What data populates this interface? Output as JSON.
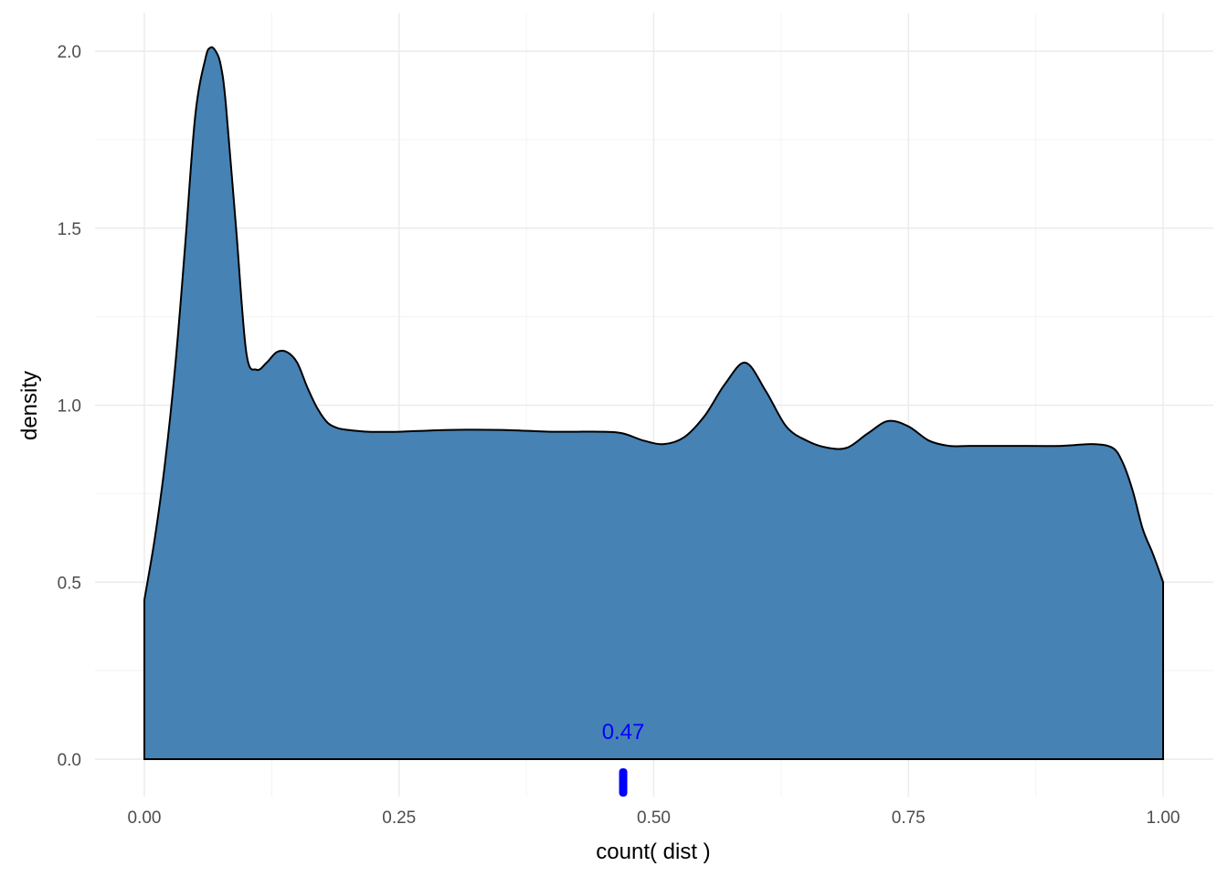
{
  "chart_data": {
    "type": "area",
    "subtype": "density",
    "xlabel": "count( dist )",
    "ylabel": "density",
    "xlim": [
      0,
      1
    ],
    "ylim": [
      0,
      2
    ],
    "x_ticks": [
      "0.00",
      "0.25",
      "0.50",
      "0.75",
      "1.00"
    ],
    "y_ticks": [
      "0.0",
      "0.5",
      "1.0",
      "1.5",
      "2.0"
    ],
    "grid": true,
    "fill_color": "#4682B4",
    "line_color": "#000000",
    "series": [
      {
        "x": [
          0.0,
          0.01,
          0.02,
          0.03,
          0.04,
          0.05,
          0.06,
          0.065,
          0.07,
          0.075,
          0.08,
          0.09,
          0.1,
          0.11,
          0.12,
          0.13,
          0.14,
          0.15,
          0.16,
          0.17,
          0.18,
          0.19,
          0.2,
          0.22,
          0.25,
          0.3,
          0.35,
          0.4,
          0.45,
          0.47,
          0.49,
          0.51,
          0.53,
          0.55,
          0.57,
          0.59,
          0.61,
          0.63,
          0.65,
          0.67,
          0.69,
          0.71,
          0.73,
          0.75,
          0.77,
          0.79,
          0.81,
          0.85,
          0.9,
          0.93,
          0.95,
          0.96,
          0.97,
          0.98,
          0.99,
          1.0
        ],
        "y": [
          0.45,
          0.62,
          0.83,
          1.1,
          1.45,
          1.82,
          1.98,
          2.01,
          2.0,
          1.96,
          1.85,
          1.5,
          1.15,
          1.1,
          1.12,
          1.15,
          1.15,
          1.12,
          1.05,
          0.99,
          0.95,
          0.935,
          0.93,
          0.925,
          0.925,
          0.93,
          0.93,
          0.925,
          0.925,
          0.92,
          0.9,
          0.89,
          0.91,
          0.97,
          1.06,
          1.12,
          1.04,
          0.94,
          0.9,
          0.88,
          0.88,
          0.92,
          0.955,
          0.94,
          0.9,
          0.885,
          0.885,
          0.885,
          0.885,
          0.89,
          0.88,
          0.84,
          0.76,
          0.65,
          0.58,
          0.5
        ]
      }
    ],
    "marker": {
      "x": 0.47,
      "label": "0.47",
      "color": "#0000FF"
    }
  }
}
